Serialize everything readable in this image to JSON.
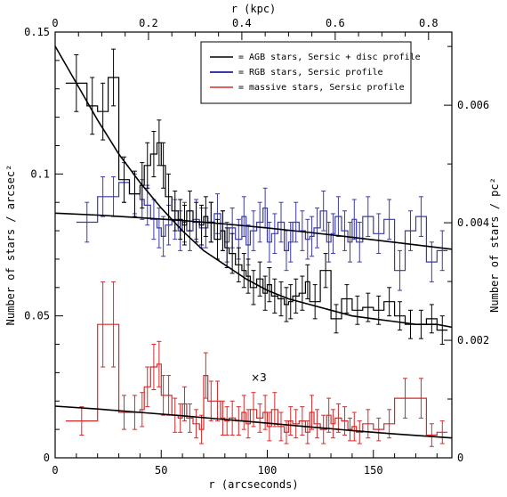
{
  "chart_data": {
    "type": "line",
    "xlabel": "r (arcseconds)",
    "ylabel": "Number of stars / arcsec²",
    "xlabel_top": "r (kpc)",
    "ylabel_right": "Number of stars / pc²",
    "xlim": [
      0,
      187
    ],
    "ylim": [
      0,
      0.15
    ],
    "x_ticks": [
      0,
      50,
      100,
      150
    ],
    "y_ticks": [
      0,
      0.05,
      0.1,
      0.15
    ],
    "x_tick_labels": [
      "0",
      "50",
      "100",
      "150"
    ],
    "y_tick_labels": [
      "0",
      "0.05",
      "0.1",
      "0.15"
    ],
    "top_axis_kpc_per_arcsec": 0.004545,
    "top_ticks": [
      0,
      0.2,
      0.4,
      0.6,
      0.8
    ],
    "top_tick_labels": [
      "0",
      "0.2",
      "0.4",
      "0.6",
      "0.8"
    ],
    "right_axis_pc2_per_arcsec2": 0.0483,
    "right_ticks": [
      0,
      0.002,
      0.004,
      0.006
    ],
    "right_tick_labels": [
      "0",
      "0.002",
      "0.004",
      "0.006"
    ],
    "legend_position": "top-right",
    "grid": false,
    "annotation": {
      "text": "×3",
      "x": 96,
      "y": 0.027
    },
    "series": [
      {
        "name": "= AGB stars, Sersic + disc profile",
        "color": "#000000",
        "bin_edges": [
          5,
          15,
          20,
          25,
          30,
          35,
          40,
          42,
          45,
          48,
          50,
          52,
          55,
          58,
          60,
          62,
          65,
          68,
          70,
          72,
          75,
          78,
          80,
          82,
          85,
          88,
          90,
          92,
          95,
          98,
          100,
          102,
          105,
          108,
          110,
          112,
          115,
          118,
          120,
          125,
          130,
          135,
          140,
          145,
          150,
          155,
          160,
          165,
          170,
          175,
          180,
          185
        ],
        "values": [
          0.132,
          0.124,
          0.122,
          0.134,
          0.098,
          0.093,
          0.096,
          0.103,
          0.107,
          0.111,
          0.103,
          0.092,
          0.087,
          0.084,
          0.082,
          0.087,
          0.083,
          0.082,
          0.085,
          0.083,
          0.077,
          0.08,
          0.074,
          0.072,
          0.068,
          0.066,
          0.064,
          0.06,
          0.063,
          0.058,
          0.061,
          0.057,
          0.056,
          0.054,
          0.055,
          0.057,
          0.058,
          0.062,
          0.055,
          0.066,
          0.049,
          0.056,
          0.052,
          0.053,
          0.052,
          0.055,
          0.05,
          0.047,
          0.047,
          0.049,
          0.045
        ],
        "errors": [
          0.01,
          0.01,
          0.01,
          0.01,
          0.008,
          0.008,
          0.008,
          0.008,
          0.008,
          0.008,
          0.008,
          0.008,
          0.007,
          0.007,
          0.007,
          0.007,
          0.007,
          0.007,
          0.007,
          0.007,
          0.007,
          0.007,
          0.007,
          0.007,
          0.006,
          0.006,
          0.006,
          0.006,
          0.006,
          0.006,
          0.006,
          0.006,
          0.006,
          0.006,
          0.006,
          0.006,
          0.006,
          0.006,
          0.006,
          0.006,
          0.005,
          0.005,
          0.005,
          0.005,
          0.005,
          0.005,
          0.005,
          0.005,
          0.005,
          0.005,
          0.005
        ],
        "model_x": [
          0,
          10,
          20,
          30,
          40,
          50,
          60,
          70,
          80,
          90,
          100,
          110,
          120,
          130,
          140,
          150,
          160,
          170,
          180,
          187
        ],
        "model_y": [
          0.145,
          0.132,
          0.119,
          0.107,
          0.097,
          0.088,
          0.08,
          0.073,
          0.068,
          0.063,
          0.059,
          0.056,
          0.054,
          0.052,
          0.05,
          0.049,
          0.048,
          0.047,
          0.047,
          0.046
        ]
      },
      {
        "name": "= RGB stars, Sersic profile",
        "color": "#3a3aa8",
        "bin_edges": [
          10,
          20,
          25,
          30,
          35,
          40,
          42,
          45,
          48,
          50,
          52,
          55,
          58,
          60,
          62,
          65,
          68,
          70,
          72,
          75,
          78,
          80,
          82,
          85,
          88,
          90,
          92,
          95,
          98,
          100,
          102,
          105,
          108,
          110,
          112,
          115,
          118,
          120,
          122,
          125,
          128,
          130,
          132,
          135,
          138,
          140,
          142,
          145,
          150,
          155,
          160,
          165,
          170,
          175,
          180,
          185
        ],
        "values": [
          0.083,
          0.092,
          0.092,
          0.097,
          0.093,
          0.091,
          0.089,
          0.084,
          0.081,
          0.078,
          0.082,
          0.084,
          0.08,
          0.083,
          0.08,
          0.084,
          0.081,
          0.081,
          0.083,
          0.086,
          0.08,
          0.076,
          0.081,
          0.077,
          0.085,
          0.075,
          0.08,
          0.083,
          0.088,
          0.076,
          0.079,
          0.083,
          0.073,
          0.076,
          0.083,
          0.08,
          0.077,
          0.078,
          0.081,
          0.087,
          0.076,
          0.079,
          0.085,
          0.08,
          0.076,
          0.084,
          0.076,
          0.085,
          0.079,
          0.084,
          0.066,
          0.08,
          0.085,
          0.069,
          0.073
        ],
        "errors": [
          0.007,
          0.007,
          0.007,
          0.007,
          0.007,
          0.007,
          0.007,
          0.007,
          0.007,
          0.007,
          0.007,
          0.007,
          0.007,
          0.007,
          0.007,
          0.007,
          0.007,
          0.007,
          0.007,
          0.007,
          0.007,
          0.007,
          0.007,
          0.007,
          0.007,
          0.007,
          0.007,
          0.007,
          0.007,
          0.007,
          0.007,
          0.007,
          0.007,
          0.007,
          0.007,
          0.007,
          0.007,
          0.007,
          0.007,
          0.007,
          0.007,
          0.007,
          0.007,
          0.007,
          0.007,
          0.007,
          0.007,
          0.007,
          0.007,
          0.007,
          0.007,
          0.007,
          0.007,
          0.007,
          0.007
        ],
        "model_x": [
          0,
          20,
          40,
          60,
          80,
          100,
          120,
          140,
          160,
          187
        ],
        "model_y": [
          0.0862,
          0.0855,
          0.0846,
          0.0836,
          0.0824,
          0.081,
          0.0794,
          0.0777,
          0.0759,
          0.0735
        ]
      },
      {
        "name": "= massive stars, Sersic profile",
        "color": "#d42a2a",
        "bin_edges": [
          5,
          20,
          25,
          30,
          35,
          40,
          42,
          45,
          48,
          50,
          52,
          55,
          58,
          60,
          62,
          65,
          68,
          70,
          72,
          75,
          78,
          80,
          82,
          85,
          88,
          90,
          92,
          95,
          98,
          100,
          102,
          105,
          108,
          110,
          112,
          115,
          118,
          120,
          122,
          125,
          128,
          130,
          132,
          135,
          138,
          140,
          142,
          145,
          150,
          155,
          160,
          170,
          175,
          180,
          185
        ],
        "values": [
          0.013,
          0.047,
          0.047,
          0.016,
          0.016,
          0.017,
          0.025,
          0.032,
          0.033,
          0.022,
          0.022,
          0.015,
          0.014,
          0.019,
          0.014,
          0.012,
          0.01,
          0.029,
          0.02,
          0.02,
          0.014,
          0.013,
          0.014,
          0.013,
          0.016,
          0.012,
          0.017,
          0.014,
          0.016,
          0.011,
          0.017,
          0.011,
          0.009,
          0.013,
          0.012,
          0.013,
          0.009,
          0.016,
          0.012,
          0.01,
          0.015,
          0.012,
          0.014,
          0.013,
          0.01,
          0.011,
          0.009,
          0.012,
          0.01,
          0.012,
          0.021,
          0.021,
          0.008,
          0.009
        ],
        "errors": [
          0.005,
          0.015,
          0.015,
          0.006,
          0.006,
          0.006,
          0.007,
          0.008,
          0.008,
          0.007,
          0.007,
          0.006,
          0.005,
          0.006,
          0.005,
          0.005,
          0.005,
          0.008,
          0.007,
          0.007,
          0.006,
          0.005,
          0.006,
          0.005,
          0.006,
          0.005,
          0.006,
          0.005,
          0.006,
          0.005,
          0.006,
          0.005,
          0.004,
          0.005,
          0.005,
          0.005,
          0.004,
          0.006,
          0.005,
          0.005,
          0.006,
          0.005,
          0.005,
          0.005,
          0.004,
          0.005,
          0.004,
          0.005,
          0.004,
          0.005,
          0.007,
          0.007,
          0.004,
          0.004
        ],
        "model_x": [
          0,
          20,
          40,
          60,
          80,
          100,
          120,
          140,
          160,
          187
        ],
        "model_y": [
          0.0182,
          0.0172,
          0.016,
          0.0148,
          0.0135,
          0.0122,
          0.0109,
          0.0096,
          0.0084,
          0.007
        ]
      }
    ]
  }
}
